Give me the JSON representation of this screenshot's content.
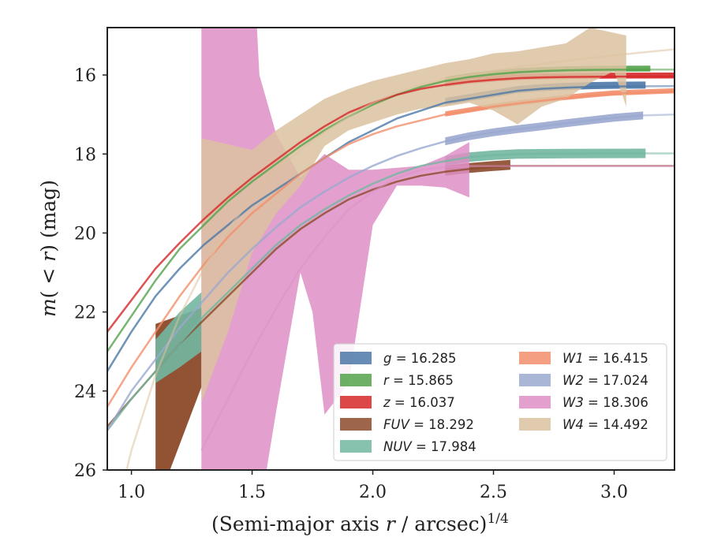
{
  "chart_data": {
    "type": "line",
    "xlabel": "(Semi-major axis r / arcsec)",
    "xlabel_sup": "1/4",
    "ylabel": "m(< r) (mag)",
    "xlim": [
      0.9,
      3.25
    ],
    "ylim": [
      26,
      14.8
    ],
    "y_inverted": true,
    "x_ticks": [
      1.0,
      1.5,
      2.0,
      2.5,
      3.0
    ],
    "x_tick_labels": [
      "1.0",
      "1.5",
      "2.0",
      "2.5",
      "3.0"
    ],
    "y_ticks": [
      16,
      18,
      20,
      22,
      24,
      26
    ],
    "y_tick_labels": [
      "16",
      "18",
      "20",
      "22",
      "24",
      "26"
    ],
    "grid": false,
    "legend_position": "lower-right",
    "legend_columns": 2,
    "series": [
      {
        "name": "g = 16.285",
        "label_var": "g",
        "label_val": "16.285",
        "color": "#4c78a8",
        "data": [
          [
            0.9,
            23.5
          ],
          [
            1.0,
            22.5
          ],
          [
            1.1,
            21.6
          ],
          [
            1.2,
            20.9
          ],
          [
            1.3,
            20.3
          ],
          [
            1.4,
            19.8
          ],
          [
            1.5,
            19.3
          ],
          [
            1.6,
            18.9
          ],
          [
            1.7,
            18.5
          ],
          [
            1.8,
            18.1
          ],
          [
            1.9,
            17.7
          ],
          [
            2.0,
            17.4
          ],
          [
            2.1,
            17.1
          ],
          [
            2.2,
            16.9
          ],
          [
            2.3,
            16.7
          ],
          [
            2.4,
            16.6
          ],
          [
            2.5,
            16.5
          ],
          [
            2.6,
            16.4
          ],
          [
            2.7,
            16.35
          ],
          [
            2.8,
            16.32
          ],
          [
            2.9,
            16.3
          ],
          [
            3.0,
            16.29
          ],
          [
            3.13,
            16.285
          ]
        ],
        "band": [
          0.12,
          0.06
        ],
        "ext": [
          [
            3.13,
            16.285
          ],
          [
            3.25,
            16.28
          ]
        ]
      },
      {
        "name": "r = 15.865",
        "label_var": "r",
        "label_val": "15.865",
        "color": "#54a24b",
        "data": [
          [
            0.9,
            23.0
          ],
          [
            1.0,
            22.1
          ],
          [
            1.1,
            21.2
          ],
          [
            1.2,
            20.4
          ],
          [
            1.3,
            19.8
          ],
          [
            1.4,
            19.2
          ],
          [
            1.5,
            18.7
          ],
          [
            1.6,
            18.25
          ],
          [
            1.7,
            17.8
          ],
          [
            1.8,
            17.4
          ],
          [
            1.9,
            17.05
          ],
          [
            2.0,
            16.75
          ],
          [
            2.1,
            16.5
          ],
          [
            2.2,
            16.3
          ],
          [
            2.3,
            16.15
          ],
          [
            2.4,
            16.05
          ],
          [
            2.5,
            15.98
          ],
          [
            2.6,
            15.93
          ],
          [
            2.7,
            15.9
          ],
          [
            2.8,
            15.88
          ],
          [
            2.9,
            15.87
          ],
          [
            3.0,
            15.867
          ],
          [
            3.15,
            15.865
          ]
        ],
        "band": [
          0.1,
          0.05
        ],
        "ext": [
          [
            3.15,
            15.865
          ],
          [
            3.25,
            15.865
          ]
        ]
      },
      {
        "name": "z = 16.037",
        "label_var": "z",
        "label_val": "16.037",
        "color": "#d62728",
        "data": [
          [
            0.9,
            22.5
          ],
          [
            1.0,
            21.7
          ],
          [
            1.1,
            20.9
          ],
          [
            1.2,
            20.25
          ],
          [
            1.3,
            19.65
          ],
          [
            1.4,
            19.1
          ],
          [
            1.5,
            18.6
          ],
          [
            1.6,
            18.15
          ],
          [
            1.7,
            17.7
          ],
          [
            1.8,
            17.3
          ],
          [
            1.9,
            16.95
          ],
          [
            2.0,
            16.7
          ],
          [
            2.1,
            16.5
          ],
          [
            2.2,
            16.35
          ],
          [
            2.3,
            16.25
          ],
          [
            2.4,
            16.17
          ],
          [
            2.5,
            16.12
          ],
          [
            2.6,
            16.08
          ],
          [
            2.7,
            16.06
          ],
          [
            2.8,
            16.05
          ],
          [
            2.9,
            16.045
          ],
          [
            3.0,
            16.04
          ],
          [
            3.25,
            16.037
          ]
        ],
        "band": [
          0.1,
          0.05
        ],
        "ext": []
      },
      {
        "name": "FUV = 18.292",
        "label_var": "FUV",
        "label_val": "18.292",
        "color": "#8c4a2a",
        "data": [
          [
            0.9,
            24.9
          ],
          [
            1.0,
            24.2
          ],
          [
            1.1,
            23.5
          ],
          [
            1.2,
            22.8
          ],
          [
            1.3,
            22.2
          ],
          [
            1.4,
            21.6
          ],
          [
            1.5,
            21.0
          ],
          [
            1.6,
            20.4
          ],
          [
            1.7,
            19.9
          ],
          [
            1.8,
            19.5
          ],
          [
            1.9,
            19.15
          ],
          [
            2.0,
            18.9
          ],
          [
            2.1,
            18.7
          ],
          [
            2.2,
            18.55
          ],
          [
            2.3,
            18.45
          ],
          [
            2.4,
            18.38
          ],
          [
            2.5,
            18.33
          ],
          [
            2.57,
            18.3
          ]
        ],
        "band": [
          0.15,
          0.1
        ],
        "ext": [
          [
            2.57,
            18.3
          ],
          [
            3.25,
            18.3
          ]
        ],
        "region": [
          [
            1.1,
            22.3
          ],
          [
            1.29,
            21.9
          ],
          [
            1.29,
            23.9
          ],
          [
            1.16,
            26.0
          ],
          [
            1.1,
            26.0
          ]
        ]
      },
      {
        "name": "NUV = 17.984",
        "label_var": "NUV",
        "label_val": "17.984",
        "color": "#72b7a1",
        "data": [
          [
            0.9,
            25.0
          ],
          [
            1.0,
            24.2
          ],
          [
            1.1,
            23.5
          ],
          [
            1.2,
            22.8
          ],
          [
            1.3,
            22.1
          ],
          [
            1.4,
            21.5
          ],
          [
            1.5,
            20.9
          ],
          [
            1.6,
            20.3
          ],
          [
            1.7,
            19.8
          ],
          [
            1.8,
            19.4
          ],
          [
            1.9,
            19.05
          ],
          [
            2.0,
            18.75
          ],
          [
            2.1,
            18.5
          ],
          [
            2.2,
            18.3
          ],
          [
            2.3,
            18.18
          ],
          [
            2.4,
            18.08
          ],
          [
            2.5,
            18.03
          ],
          [
            2.6,
            18.0
          ],
          [
            2.8,
            17.99
          ],
          [
            3.13,
            17.984
          ]
        ],
        "band": [
          0.12,
          0.12
        ],
        "ext": [
          [
            3.13,
            17.984
          ],
          [
            3.25,
            17.984
          ]
        ],
        "region": [
          [
            1.1,
            22.7
          ],
          [
            1.2,
            22.0
          ],
          [
            1.29,
            21.5
          ],
          [
            1.29,
            23.0
          ],
          [
            1.2,
            23.4
          ],
          [
            1.1,
            23.8
          ]
        ]
      },
      {
        "name": "W1 = 16.415",
        "label_var": "W1",
        "label_val": "16.415",
        "color": "#f28e6b",
        "data": [
          [
            0.9,
            24.4
          ],
          [
            1.0,
            23.4
          ],
          [
            1.1,
            22.5
          ],
          [
            1.2,
            21.6
          ],
          [
            1.3,
            20.8
          ],
          [
            1.4,
            20.1
          ],
          [
            1.5,
            19.5
          ],
          [
            1.6,
            19.0
          ],
          [
            1.7,
            18.5
          ],
          [
            1.8,
            18.1
          ],
          [
            1.9,
            17.75
          ],
          [
            2.0,
            17.5
          ],
          [
            2.1,
            17.3
          ],
          [
            2.2,
            17.15
          ],
          [
            2.3,
            17.0
          ],
          [
            2.4,
            16.9
          ],
          [
            2.5,
            16.8
          ],
          [
            2.6,
            16.72
          ],
          [
            2.7,
            16.65
          ],
          [
            2.8,
            16.58
          ],
          [
            2.9,
            16.52
          ],
          [
            3.0,
            16.47
          ],
          [
            3.25,
            16.415
          ]
        ],
        "band": [
          0.08,
          0.05
        ],
        "ext": []
      },
      {
        "name": "W2 = 17.024",
        "label_var": "W2",
        "label_val": "17.024",
        "color": "#9aa9cf",
        "data": [
          [
            0.9,
            25.0
          ],
          [
            1.0,
            24.0
          ],
          [
            1.1,
            23.2
          ],
          [
            1.2,
            22.4
          ],
          [
            1.3,
            21.7
          ],
          [
            1.4,
            21.0
          ],
          [
            1.5,
            20.4
          ],
          [
            1.6,
            19.85
          ],
          [
            1.7,
            19.35
          ],
          [
            1.8,
            18.95
          ],
          [
            1.9,
            18.6
          ],
          [
            2.0,
            18.3
          ],
          [
            2.1,
            18.05
          ],
          [
            2.2,
            17.85
          ],
          [
            2.3,
            17.68
          ],
          [
            2.4,
            17.55
          ],
          [
            2.5,
            17.45
          ],
          [
            2.6,
            17.37
          ],
          [
            2.7,
            17.3
          ],
          [
            2.8,
            17.22
          ],
          [
            2.9,
            17.15
          ],
          [
            3.0,
            17.08
          ],
          [
            3.12,
            17.024
          ]
        ],
        "band": [
          0.1,
          0.1
        ],
        "ext": [
          [
            3.12,
            17.024
          ],
          [
            3.25,
            17.0
          ]
        ]
      },
      {
        "name": "W3 = 18.306",
        "label_var": "W3",
        "label_val": "18.306",
        "color": "#de8fc5",
        "data": [
          [
            1.29,
            25.5
          ],
          [
            1.4,
            24.2
          ],
          [
            1.5,
            23.0
          ],
          [
            1.6,
            21.9
          ],
          [
            1.7,
            20.9
          ],
          [
            1.8,
            20.1
          ],
          [
            1.9,
            19.4
          ],
          [
            2.0,
            18.95
          ],
          [
            2.1,
            18.6
          ],
          [
            2.2,
            18.4
          ],
          [
            2.3,
            18.33
          ],
          [
            2.4,
            18.31
          ]
        ],
        "band": [
          0.0,
          0.0
        ],
        "ext": [
          [
            2.4,
            18.306
          ],
          [
            3.25,
            18.306
          ]
        ],
        "upper": [
          [
            1.29,
            14.8
          ],
          [
            1.52,
            14.8
          ],
          [
            1.53,
            16.0
          ],
          [
            1.6,
            17.5
          ],
          [
            1.7,
            18.6
          ],
          [
            1.8,
            18.0
          ],
          [
            1.9,
            18.4
          ],
          [
            2.0,
            18.4
          ],
          [
            2.1,
            18.35
          ],
          [
            2.2,
            18.3
          ],
          [
            2.3,
            18.05
          ],
          [
            2.4,
            17.7
          ]
        ],
        "lower": [
          [
            2.4,
            19.1
          ],
          [
            2.3,
            18.85
          ],
          [
            2.2,
            18.8
          ],
          [
            2.1,
            18.8
          ],
          [
            2.0,
            19.8
          ],
          [
            1.9,
            23.8
          ],
          [
            1.8,
            24.6
          ],
          [
            1.75,
            22.0
          ],
          [
            1.7,
            21.0
          ],
          [
            1.6,
            24.5
          ],
          [
            1.56,
            26.0
          ],
          [
            1.29,
            26.0
          ]
        ]
      },
      {
        "name": "W4 = 14.492",
        "label_var": "W4",
        "label_val": "14.492",
        "color": "#dcc2a0",
        "data": [
          [
            0.9,
            28.0
          ],
          [
            1.0,
            25.5
          ],
          [
            1.1,
            23.6
          ],
          [
            1.2,
            22.1
          ],
          [
            1.3,
            20.9
          ],
          [
            1.4,
            19.9
          ],
          [
            1.5,
            19.1
          ],
          [
            1.6,
            18.4
          ],
          [
            1.7,
            17.9
          ],
          [
            1.8,
            17.45
          ],
          [
            1.9,
            17.05
          ],
          [
            2.0,
            16.7
          ],
          [
            2.1,
            16.45
          ],
          [
            2.2,
            16.25
          ],
          [
            2.3,
            16.1
          ],
          [
            2.4,
            16.0
          ],
          [
            2.5,
            15.9
          ],
          [
            2.6,
            15.8
          ],
          [
            2.7,
            15.72
          ],
          [
            2.8,
            15.64
          ],
          [
            2.9,
            15.57
          ],
          [
            3.0,
            15.5
          ],
          [
            3.25,
            15.35
          ]
        ],
        "band": [
          0.0,
          0.0
        ],
        "ext": [],
        "upper": [
          [
            1.29,
            17.6
          ],
          [
            1.5,
            17.9
          ],
          [
            1.6,
            17.4
          ],
          [
            1.7,
            17.0
          ],
          [
            1.8,
            16.6
          ],
          [
            1.9,
            16.35
          ],
          [
            2.0,
            16.15
          ],
          [
            2.1,
            16.0
          ],
          [
            2.2,
            15.85
          ],
          [
            2.3,
            15.7
          ],
          [
            2.4,
            15.6
          ],
          [
            2.5,
            15.45
          ],
          [
            2.6,
            15.4
          ],
          [
            2.7,
            15.3
          ],
          [
            2.8,
            15.2
          ],
          [
            2.9,
            14.8
          ],
          [
            3.05,
            15.0
          ]
        ],
        "lower": [
          [
            3.05,
            16.8
          ],
          [
            3.0,
            15.9
          ],
          [
            2.9,
            16.2
          ],
          [
            2.8,
            16.6
          ],
          [
            2.7,
            16.8
          ],
          [
            2.6,
            17.25
          ],
          [
            2.5,
            16.9
          ],
          [
            2.4,
            16.7
          ],
          [
            2.3,
            16.8
          ],
          [
            2.2,
            16.85
          ],
          [
            2.1,
            17.0
          ],
          [
            2.0,
            17.2
          ],
          [
            1.9,
            17.4
          ],
          [
            1.8,
            17.8
          ],
          [
            1.7,
            18.8
          ],
          [
            1.6,
            19.5
          ],
          [
            1.5,
            20.5
          ],
          [
            1.4,
            22.5
          ],
          [
            1.29,
            24.3
          ]
        ]
      }
    ]
  }
}
